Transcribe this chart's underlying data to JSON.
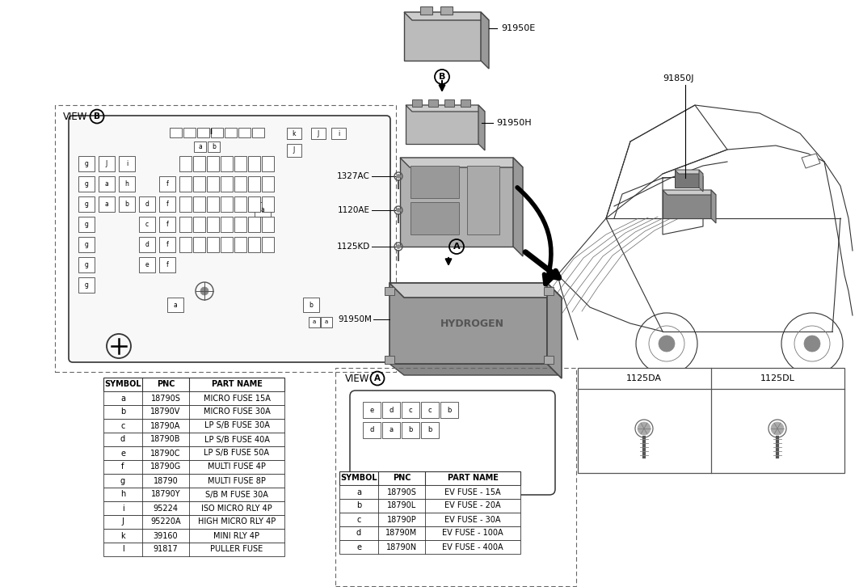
{
  "bg_color": "#ffffff",
  "table_b": {
    "headers": [
      "SYMBOL",
      "PNC",
      "PART NAME"
    ],
    "rows": [
      [
        "a",
        "18790S",
        "MICRO FUSE 15A"
      ],
      [
        "b",
        "18790V",
        "MICRO FUSE 30A"
      ],
      [
        "c",
        "18790A",
        "LP S/B FUSE 30A"
      ],
      [
        "d",
        "18790B",
        "LP S/B FUSE 40A"
      ],
      [
        "e",
        "18790C",
        "LP S/B FUSE 50A"
      ],
      [
        "f",
        "18790G",
        "MULTI FUSE 4P"
      ],
      [
        "g",
        "18790",
        "MULTI FUSE 8P"
      ],
      [
        "h",
        "18790Y",
        "S/B M FUSE 30A"
      ],
      [
        "i",
        "95224",
        "ISO MICRO RLY 4P"
      ],
      [
        "J",
        "95220A",
        "HIGH MICRO RLY 4P"
      ],
      [
        "k",
        "39160",
        "MINI RLY 4P"
      ],
      [
        "l",
        "91817",
        "PULLER FUSE"
      ]
    ]
  },
  "table_a": {
    "headers": [
      "SYMBOL",
      "PNC",
      "PART NAME"
    ],
    "rows": [
      [
        "a",
        "18790S",
        "EV FUSE - 15A"
      ],
      [
        "b",
        "18790L",
        "EV FUSE - 20A"
      ],
      [
        "c",
        "18790P",
        "EV FUSE - 30A"
      ],
      [
        "d",
        "18790M",
        "EV FUSE - 100A"
      ],
      [
        "e",
        "18790N",
        "EV FUSE - 400A"
      ]
    ]
  }
}
